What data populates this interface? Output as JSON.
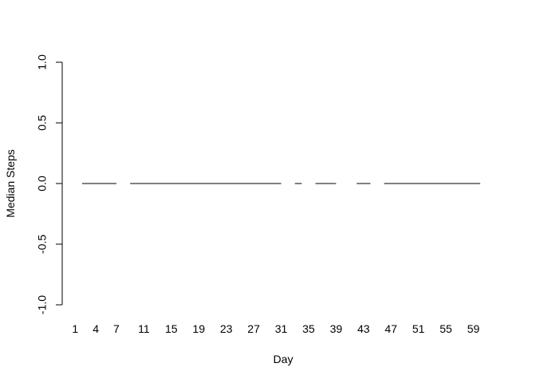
{
  "chart_data": {
    "type": "line",
    "title": "",
    "xlabel": "Day",
    "ylabel": "Median Steps",
    "ylim": [
      -1.0,
      1.0
    ],
    "yticks": [
      -1.0,
      -0.5,
      0.0,
      0.5,
      1.0
    ],
    "ytick_labels": [
      "-1.0",
      "-0.5",
      "0.0",
      "0.5",
      "1.0"
    ],
    "xlim": [
      0.5,
      61.5
    ],
    "xticks": [
      1,
      4,
      7,
      11,
      15,
      19,
      23,
      27,
      31,
      35,
      39,
      43,
      47,
      51,
      55,
      59
    ],
    "xtick_labels": [
      "1",
      "4",
      "7",
      "11",
      "15",
      "19",
      "23",
      "27",
      "31",
      "35",
      "39",
      "43",
      "47",
      "51",
      "55",
      "59"
    ],
    "grid": false,
    "legend": "none",
    "series": [
      {
        "segments": [
          {
            "x": [
              2,
              3,
              4,
              5,
              6,
              7
            ],
            "y": [
              0,
              0,
              0,
              0,
              0,
              0
            ]
          },
          {
            "x": [
              9,
              10,
              11,
              12,
              13,
              14,
              15,
              16,
              17,
              18,
              19,
              20,
              21,
              22,
              23,
              24,
              25,
              26,
              27,
              28,
              29,
              30,
              31
            ],
            "y": [
              0,
              0,
              0,
              0,
              0,
              0,
              0,
              0,
              0,
              0,
              0,
              0,
              0,
              0,
              0,
              0,
              0,
              0,
              0,
              0,
              0,
              0,
              0
            ]
          },
          {
            "x": [
              33,
              34
            ],
            "y": [
              0,
              0
            ]
          },
          {
            "x": [
              36,
              37,
              38,
              39
            ],
            "y": [
              0,
              0,
              0,
              0
            ]
          },
          {
            "x": [
              42,
              43,
              44
            ],
            "y": [
              0,
              0,
              0
            ]
          },
          {
            "x": [
              46,
              47,
              48,
              49,
              50,
              51,
              52,
              53,
              54,
              55,
              56,
              57,
              58,
              59,
              60
            ],
            "y": [
              0,
              0,
              0,
              0,
              0,
              0,
              0,
              0,
              0,
              0,
              0,
              0,
              0,
              0,
              0
            ]
          }
        ],
        "color": "#000000"
      }
    ]
  }
}
